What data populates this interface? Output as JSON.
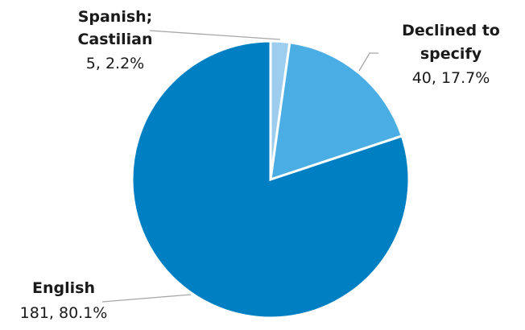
{
  "chart_data": {
    "type": "pie",
    "start_angle_deg": 0,
    "direction": "clockwise",
    "slices": [
      {
        "name": "Spanish; Castilian",
        "value": 5,
        "percent": "2.2%",
        "color": "#9dcdef",
        "label_lines": [
          "Spanish;",
          "Castilian"
        ],
        "value_label": "5, 2.2%"
      },
      {
        "name": "Declined to specify",
        "value": 40,
        "percent": "17.7%",
        "color": "#4aaee4",
        "label_lines": [
          "Declined to",
          "specify"
        ],
        "value_label": "40, 17.7%"
      },
      {
        "name": "English",
        "value": 181,
        "percent": "80.1%",
        "color": "#0080c3",
        "label_lines": [
          "English"
        ],
        "value_label": "181, 80.1%"
      }
    ]
  }
}
